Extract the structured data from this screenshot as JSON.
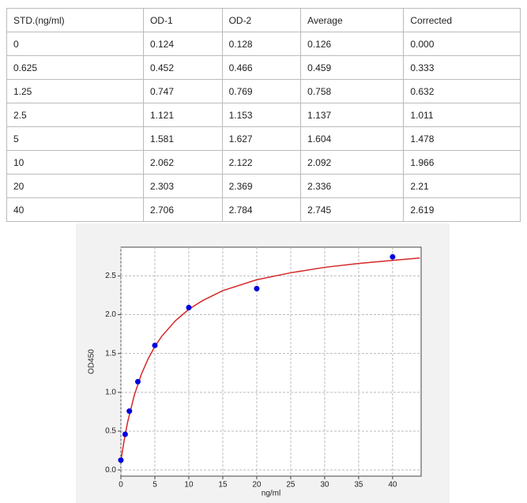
{
  "table": {
    "header": [
      "STD.(ng/ml)",
      "OD-1",
      "OD-2",
      "Average",
      "Corrected"
    ],
    "rows": [
      [
        "0",
        "0.124",
        "0.128",
        "0.126",
        "0.000"
      ],
      [
        "0.625",
        "0.452",
        "0.466",
        "0.459",
        "0.333"
      ],
      [
        "1.25",
        "0.747",
        "0.769",
        "0.758",
        "0.632"
      ],
      [
        "2.5",
        "1.121",
        "1.153",
        "1.137",
        "1.011"
      ],
      [
        "5",
        "1.581",
        "1.627",
        "1.604",
        "1.478"
      ],
      [
        "10",
        "2.062",
        "2.122",
        "2.092",
        "1.966"
      ],
      [
        "20",
        "2.303",
        "2.369",
        "2.336",
        "2.21"
      ],
      [
        "40",
        "2.706",
        "2.784",
        "2.745",
        "2.619"
      ]
    ]
  },
  "chart_data": {
    "type": "scatter",
    "xlabel": "ng/ml",
    "ylabel": "OD450",
    "series": [
      {
        "type": "scatter",
        "color": "#0000dd",
        "x": [
          0,
          0.625,
          1.25,
          2.5,
          5,
          10,
          20,
          40
        ],
        "values": [
          0.126,
          0.459,
          0.758,
          1.137,
          1.604,
          2.092,
          2.336,
          2.745
        ]
      },
      {
        "type": "line",
        "color": "#d62728",
        "x": [
          0,
          0.5,
          1,
          2,
          3,
          4,
          5,
          6,
          8,
          10,
          12,
          15,
          20,
          25,
          30,
          35,
          40,
          44
        ],
        "values": [
          0.12,
          0.39,
          0.62,
          0.97,
          1.23,
          1.43,
          1.59,
          1.72,
          1.92,
          2.07,
          2.18,
          2.31,
          2.45,
          2.54,
          2.61,
          2.66,
          2.7,
          2.73
        ]
      }
    ],
    "xlim": [
      0,
      44.2
    ],
    "ylim": [
      -0.08,
      2.87
    ],
    "xticks": [
      0,
      5,
      10,
      15,
      20,
      25,
      30,
      35,
      40
    ],
    "yticks": [
      {
        "value": 0,
        "label": "0.0"
      },
      0.5,
      {
        "value": 1,
        "label": "1.0"
      },
      1.5,
      {
        "value": 2,
        "label": "2.0"
      },
      2.5
    ],
    "grid": true
  }
}
